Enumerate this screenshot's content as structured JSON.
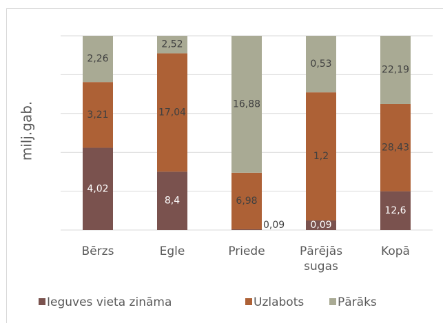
{
  "chart_data": {
    "type": "bar",
    "stack": "percent",
    "y_label": "milj.gab.",
    "categories": [
      "Bērzs",
      "Egle",
      "Priede",
      "Pārējās sugas",
      "Kopā"
    ],
    "series": [
      {
        "name": "Ieguves vieta zināma",
        "color": "#7a524e",
        "label_color": "#ffffff",
        "values": [
          4.02,
          8.4,
          0.09,
          0.09,
          12.6
        ],
        "value_labels": [
          "4,02",
          "8,4",
          "0,09",
          "0,09",
          "12,6"
        ]
      },
      {
        "name": "Uzlabots",
        "color": "#ad6136",
        "label_color": "#404040",
        "values": [
          3.21,
          17.04,
          6.98,
          1.2,
          28.43
        ],
        "value_labels": [
          "3,21",
          "17,04",
          "6,98",
          "1,2",
          "28,43"
        ]
      },
      {
        "name": "Pārāks",
        "color": "#a9aa94",
        "label_color": "#404040",
        "values": [
          2.26,
          2.52,
          16.88,
          0.53,
          22.19
        ],
        "value_labels": [
          "2,26",
          "2,52",
          "16,88",
          "0,53",
          "22,19"
        ]
      }
    ],
    "ylim": [
      0,
      100
    ],
    "gridlines": [
      0,
      20,
      40,
      60,
      80,
      100
    ],
    "grid": true,
    "legend": "bottom"
  }
}
